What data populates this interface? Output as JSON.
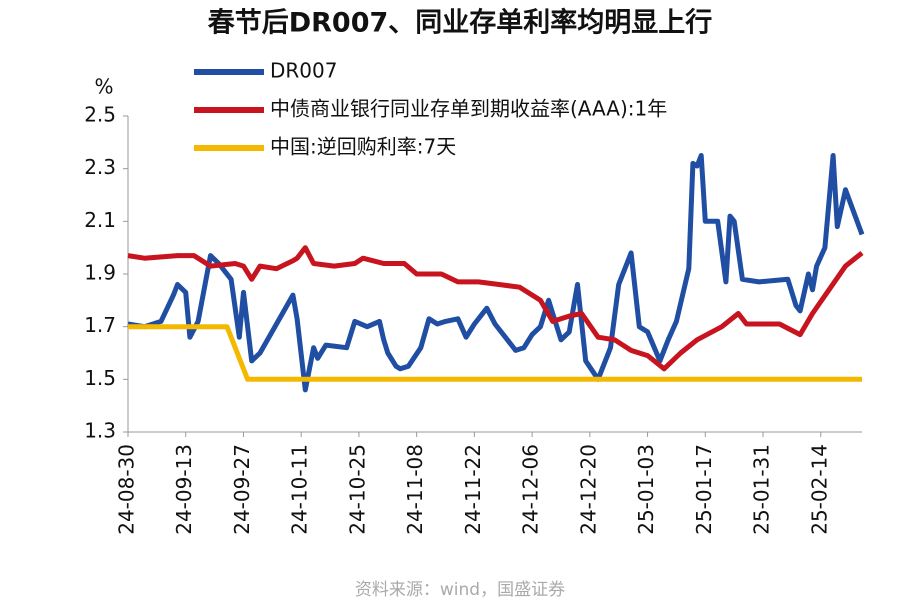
{
  "chart_data": {
    "type": "line",
    "title": "春节后DR007、同业存单利率均明显上行",
    "y_label": "%",
    "source": "资料来源：wind，国盛证券",
    "xlim": [
      "2024-08-30",
      "2025-02-24"
    ],
    "ylim": [
      1.3,
      2.5
    ],
    "yticks": [
      1.3,
      1.5,
      1.7,
      1.9,
      2.1,
      2.3,
      2.5
    ],
    "xticks": [
      {
        "value": "2024-08-30",
        "label": "24-08-30"
      },
      {
        "value": "2024-09-13",
        "label": "24-09-13"
      },
      {
        "value": "2024-09-27",
        "label": "24-09-27"
      },
      {
        "value": "2024-10-11",
        "label": "24-10-11"
      },
      {
        "value": "2024-10-25",
        "label": "24-10-25"
      },
      {
        "value": "2024-11-08",
        "label": "24-11-08"
      },
      {
        "value": "2024-11-22",
        "label": "24-11-22"
      },
      {
        "value": "2024-12-06",
        "label": "24-12-06"
      },
      {
        "value": "2024-12-20",
        "label": "24-12-20"
      },
      {
        "value": "2025-01-03",
        "label": "25-01-03"
      },
      {
        "value": "2025-01-17",
        "label": "25-01-17"
      },
      {
        "value": "2025-01-31",
        "label": "25-01-31"
      },
      {
        "value": "2025-02-14",
        "label": "25-02-14"
      }
    ],
    "legend": "top",
    "series": [
      {
        "name": "DR007",
        "color": "#1f4ea3",
        "x": [
          "2024-08-30",
          "2024-09-03",
          "2024-09-07",
          "2024-09-10",
          "2024-09-11",
          "2024-09-13",
          "2024-09-14",
          "2024-09-16",
          "2024-09-19",
          "2024-09-21",
          "2024-09-24",
          "2024-09-26",
          "2024-09-27",
          "2024-09-29",
          "2024-10-01",
          "2024-10-09",
          "2024-10-10",
          "2024-10-12",
          "2024-10-14",
          "2024-10-15",
          "2024-10-17",
          "2024-10-22",
          "2024-10-24",
          "2024-10-27",
          "2024-10-30",
          "2024-10-31",
          "2024-11-01",
          "2024-11-03",
          "2024-11-04",
          "2024-11-06",
          "2024-11-09",
          "2024-11-11",
          "2024-11-13",
          "2024-11-15",
          "2024-11-18",
          "2024-11-20",
          "2024-11-22",
          "2024-11-25",
          "2024-11-27",
          "2024-11-30",
          "2024-12-02",
          "2024-12-04",
          "2024-12-06",
          "2024-12-08",
          "2024-12-10",
          "2024-12-11",
          "2024-12-13",
          "2024-12-15",
          "2024-12-17",
          "2024-12-19",
          "2024-12-22",
          "2024-12-25",
          "2024-12-27",
          "2024-12-30",
          "2025-01-01",
          "2025-01-03",
          "2025-01-06",
          "2025-01-08",
          "2025-01-10",
          "2025-01-13",
          "2025-01-14",
          "2025-01-15",
          "2025-01-16",
          "2025-01-17",
          "2025-01-20",
          "2025-01-22",
          "2025-01-23",
          "2025-01-24",
          "2025-01-26",
          "2025-01-30",
          "2025-02-06",
          "2025-02-08",
          "2025-02-09",
          "2025-02-11",
          "2025-02-12",
          "2025-02-13",
          "2025-02-15",
          "2025-02-17",
          "2025-02-18",
          "2025-02-20",
          "2025-02-24"
        ],
        "values": [
          1.71,
          1.7,
          1.72,
          1.82,
          1.86,
          1.83,
          1.66,
          1.72,
          1.97,
          1.94,
          1.88,
          1.66,
          1.83,
          1.57,
          1.6,
          1.82,
          1.73,
          1.46,
          1.62,
          1.58,
          1.63,
          1.62,
          1.72,
          1.7,
          1.72,
          1.65,
          1.6,
          1.55,
          1.54,
          1.55,
          1.62,
          1.73,
          1.71,
          1.72,
          1.73,
          1.66,
          1.71,
          1.77,
          1.71,
          1.65,
          1.61,
          1.62,
          1.67,
          1.7,
          1.8,
          1.75,
          1.65,
          1.68,
          1.86,
          1.57,
          1.5,
          1.62,
          1.86,
          1.98,
          1.7,
          1.68,
          1.57,
          1.65,
          1.72,
          1.92,
          2.32,
          2.31,
          2.35,
          2.1,
          2.1,
          1.87,
          2.12,
          2.1,
          1.88,
          1.87,
          1.88,
          1.78,
          1.76,
          1.9,
          1.84,
          1.93,
          2.0,
          2.35,
          2.08,
          2.22,
          2.05
        ]
      },
      {
        "name": "中债商业银行同业存单到期收益率(AAA):1年",
        "color": "#c8141e",
        "x": [
          "2024-08-30",
          "2024-09-03",
          "2024-09-11",
          "2024-09-15",
          "2024-09-19",
          "2024-09-25",
          "2024-09-27",
          "2024-09-29",
          "2024-10-01",
          "2024-10-05",
          "2024-10-09",
          "2024-10-10",
          "2024-10-12",
          "2024-10-14",
          "2024-10-19",
          "2024-10-24",
          "2024-10-26",
          "2024-10-31",
          "2024-11-05",
          "2024-11-08",
          "2024-11-14",
          "2024-11-18",
          "2024-11-23",
          "2024-11-28",
          "2024-12-03",
          "2024-12-08",
          "2024-12-11",
          "2024-12-15",
          "2024-12-18",
          "2024-12-22",
          "2024-12-26",
          "2024-12-30",
          "2025-01-03",
          "2025-01-07",
          "2025-01-11",
          "2025-01-15",
          "2025-01-21",
          "2025-01-25",
          "2025-01-27",
          "2025-02-04",
          "2025-02-09",
          "2025-02-12",
          "2025-02-16",
          "2025-02-20",
          "2025-02-24"
        ],
        "values": [
          1.97,
          1.96,
          1.97,
          1.97,
          1.93,
          1.94,
          1.93,
          1.88,
          1.93,
          1.92,
          1.95,
          1.96,
          2.0,
          1.94,
          1.93,
          1.94,
          1.96,
          1.94,
          1.94,
          1.9,
          1.9,
          1.87,
          1.87,
          1.86,
          1.85,
          1.8,
          1.72,
          1.74,
          1.75,
          1.66,
          1.65,
          1.61,
          1.59,
          1.54,
          1.6,
          1.65,
          1.7,
          1.75,
          1.71,
          1.71,
          1.67,
          1.75,
          1.84,
          1.93,
          1.98
        ]
      },
      {
        "name": "中国:逆回购利率:7天",
        "color": "#f5b800",
        "x": [
          "2024-08-30",
          "2024-09-23",
          "2024-09-28",
          "2025-02-24"
        ],
        "values": [
          1.7,
          1.7,
          1.5,
          1.5
        ]
      }
    ]
  }
}
